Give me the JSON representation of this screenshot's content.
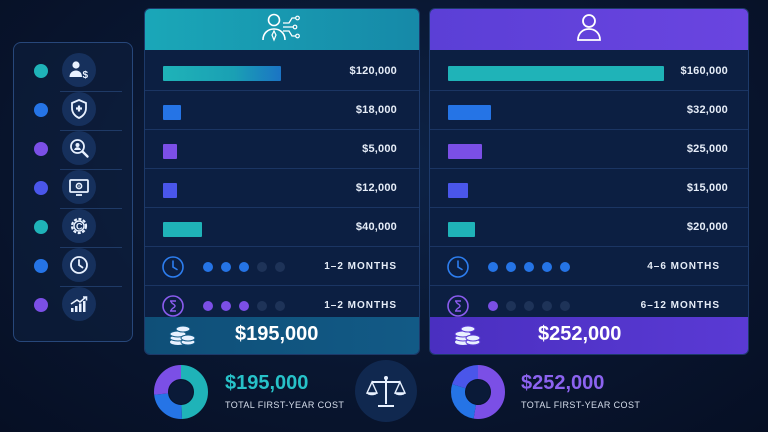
{
  "colors": {
    "teal": "#1fb3b8",
    "blue": "#2574e6",
    "purple": "#7b4fe6",
    "indigo": "#4a56ea",
    "dim_dot": "#1e3358"
  },
  "sidebar": {
    "items": [
      {
        "dot_color": "#1fb3b8",
        "icon": "user-dollar-icon"
      },
      {
        "dot_color": "#2574e6",
        "icon": "shield-plus-icon"
      },
      {
        "dot_color": "#7b4fe6",
        "icon": "person-search-icon"
      },
      {
        "dot_color": "#4a56ea",
        "icon": "monitor-gear-icon"
      },
      {
        "dot_color": "#1fb3b8",
        "icon": "gear-c-icon"
      },
      {
        "dot_color": "#2574e6",
        "icon": "clock-icon"
      },
      {
        "dot_color": "#7b4fe6",
        "icon": "growth-chart-icon"
      }
    ]
  },
  "option_a": {
    "header_icon": "ai-person-icon",
    "costs": [
      {
        "amount": "$120,000",
        "value": 120000,
        "color": "#1fb3b8"
      },
      {
        "amount": "$18,000",
        "value": 18000,
        "color": "#2574e6"
      },
      {
        "amount": "$5,000",
        "value": 5000,
        "color": "#7b4fe6"
      },
      {
        "amount": "$12,000",
        "value": 12000,
        "color": "#4a56ea"
      },
      {
        "amount": "$40,000",
        "value": 40000,
        "color": "#1fb3b8"
      }
    ],
    "setup_time": {
      "dots_filled": 3,
      "dots_total": 5,
      "label": "1–2 MONTHS",
      "color": "#2574e6"
    },
    "ramp_time": {
      "dots_filled": 3,
      "dots_total": 5,
      "label": "1–2 MONTHS",
      "color": "#7b4fe6"
    },
    "total": "$195,000"
  },
  "option_b": {
    "header_icon": "person-icon",
    "costs": [
      {
        "amount": "$160,000",
        "value": 160000,
        "color": "#1fb3b8"
      },
      {
        "amount": "$32,000",
        "value": 32000,
        "color": "#2574e6"
      },
      {
        "amount": "$25,000",
        "value": 25000,
        "color": "#7b4fe6"
      },
      {
        "amount": "$15,000",
        "value": 15000,
        "color": "#4a56ea"
      },
      {
        "amount": "$20,000",
        "value": 20000,
        "color": "#1fb3b8"
      }
    ],
    "setup_time": {
      "dots_filled": 5,
      "dots_total": 5,
      "label": "4–6 MONTHS",
      "color": "#2574e6"
    },
    "ramp_time": {
      "dots_filled": 1,
      "dots_total": 5,
      "label": "6–12 MONTHS",
      "color": "#7b4fe6"
    },
    "total": "$252,000"
  },
  "summary": {
    "a": {
      "value": "$195,000",
      "label": "TOTAL FIRST-YEAR COST",
      "color": "#27c2c9"
    },
    "b": {
      "value": "$252,000",
      "label": "TOTAL FIRST-YEAR COST",
      "color": "#8c63f0"
    },
    "center_icon": "balance-scale-icon"
  }
}
